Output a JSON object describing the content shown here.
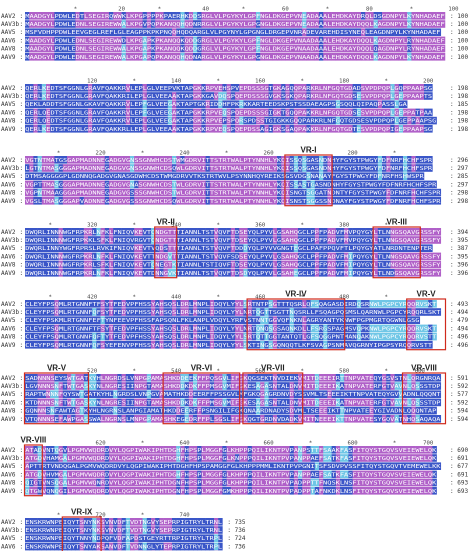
{
  "colors": {
    "conserved": "#3a56c8",
    "similar": "#b060c8",
    "partial": "#6fc6e6",
    "region_box": "#d02a1c",
    "region_line": "#d02a1c"
  },
  "blocks": [
    {
      "ruler": [
        [
          "*",
          12
        ],
        [
          "20",
          23
        ],
        [
          "*",
          32
        ],
        [
          "40",
          43
        ],
        [
          "*",
          52
        ],
        [
          "60",
          62
        ],
        [
          "*",
          72
        ],
        [
          "80",
          82
        ],
        [
          "*",
          92
        ],
        [
          "100",
          102
        ]
      ],
      "rows": [
        {
          "name": "AAV2",
          "end": "100",
          "seq": "MAADGYLPDWLEDTLSEGIRQWWKLKPGPPPPKPAERHKDDSRGLVLPGYKYLGPFNGLDKGEPVNEADAAALEHDKAYDRQLDSGDNPYLKYNHADAEF"
        },
        {
          "name": "AAV3b",
          "end": "100",
          "seq": "MAADGYLPDWLEDNLSEGIREWWALKPGVPQPKANQQHQDNRRGLVLPGYKYLGPGNGLDKGEPVNEADAAALEHDKAYDQQLKAGDNPYLKYNHADAEF"
        },
        {
          "name": "AAV5",
          "end": "100",
          "seq": "MSFVDHPPDWLEEVGEGLREFLGLEAGPPKPKPNQQHQDQARGLVLPGYNYLGPGNGLDRGEPVNRADEVAREHDISYNEQLEAGDNPYLKYNHADAEF"
        },
        {
          "name": "AAV6",
          "end": "100",
          "seq": "MAADGYLPDWLEDNLSEGIREWWDLKPGAPKPKANQQKQDDGRGLVLPGYKYLGPFNGLDKGEPVNAADAAALEHDKAYDQQLKAGDNPYLRYNHADAEF"
        },
        {
          "name": "AAV8",
          "end": "100",
          "seq": "MAADGYLPDWLEDNLSEGIREWWALKPGAPKPKANQQKQDDGRGLVLPGYKYLGPFNGLDKGEPVNAADAAALEHDKAYDQQLQAGDNPYLRYNHADAEF"
        },
        {
          "name": "AAV9",
          "end": "100",
          "seq": "MAADGYLPDWLEDNLSEGIREWWALKPGAPQPKANQQHQDNARGLVLPGYKYLGPGNGLDKGEPVNAADAAALEHDKAYDQQLKAGDNPYLKYNHADAEF"
        }
      ]
    },
    {
      "ruler": [
        [
          "120",
          16
        ],
        [
          "*",
          26
        ],
        [
          "140",
          36
        ],
        [
          "*",
          46
        ],
        [
          "160",
          56
        ],
        [
          "*",
          66
        ],
        [
          "180",
          76
        ],
        [
          "*",
          86
        ],
        [
          "200",
          96
        ]
      ],
      "rows": [
        {
          "name": "AAV2",
          "end": "198",
          "seq": "QERLKEDTSFGGNLGRAVFQAKKRVLEPLGLVEEPVKTAPGKKRPVEHSPVEPDSSSGTGKAGQQPARKRLNFGQTGDADSVPDPQPLGQPPAAPSG"
        },
        {
          "name": "AAV3b",
          "end": "198",
          "seq": "QERLKEDTSFGGNLGRAVFQAKKRILEPLGLVEEAAKTAPGKKGAVDQSPQEPDSSSGVGKSGKQPARKRLNFGQTGDSESVPDPQPLGEPPAAPTS"
        },
        {
          "name": "AAV5",
          "end": "185",
          "seq": "QEKLADDTSFGGNLGKAVFQAKKRVLEPFGLVEEGAKTAPTGKRIDDHFPKRKKARTEEDSKPSTSSDAEAGPSGSQQLQIPAQPASSLGA"
        },
        {
          "name": "AAV6",
          "end": "198",
          "seq": "QERLQEDTSFGGNLGRAVFQAKKRVLEPFGLVEEGAKTAPGKKRPVEQSPQEPDSSSGIGKTGQQPAKKRLNFGQTGDSESVPDPQPLGEPPATPAA"
        },
        {
          "name": "AAV8",
          "end": "198",
          "seq": "QERLQEDTSFGGNLGRAVFQAKKRVLEPLGLVEEGAKTAPGKKRPVEPSPQRSPDSSTGIGKKGQQPARKRLNFGQTGDSESVPDPQPLGEPPAAPSG"
        },
        {
          "name": "AAV9",
          "end": "198",
          "seq": "QERLKEDTSFGGNLGRAVFQAKKRLLEPLGLVEEAAKTAPGKKRPVEQSPQEPDSSAGIGKSGAQPAKKRLNFGQTGDTESVPDPQPIGEPPAAPSG"
        }
      ]
    },
    {
      "ruler": [
        [
          "*",
          8
        ],
        [
          "220",
          18
        ],
        [
          "*",
          28
        ],
        [
          "240",
          38
        ],
        [
          "*",
          48
        ],
        [
          "260",
          58
        ],
        [
          "*",
          68
        ],
        [
          "280",
          78
        ],
        [
          "*",
          88
        ]
      ],
      "rows": [
        {
          "name": "AAV2",
          "end": "296",
          "seq": "VGTNTMATGSGAPMADNNEGADGVGNSSGNWHCDSTWMGDRVITTSTRTWALPTYNNHLYKQISSQSGASNDNHYFGYSTPWGYFDFNRFHCHFSPR"
        },
        {
          "name": "AAV3b",
          "end": "297",
          "seq": "LGTNTMASGGGAPMADNNEGADGVGNSSGNWHCDSQWLGDRVITTSTRTWALPTYNNHLYKQISSQSGASNDNHYFGYSTPWGYFDFNRFHCHFSPR"
        },
        {
          "name": "AAV5",
          "end": "285",
          "seq": "DTMSAGGGGPLGDNNQGADGVGNASGDWHCDSTWMGDRVVTKSTRTWVLPSYNNHQYREIKSGSVDGSNANAYFGYSTPWGYFDFNRFHSHWSPR"
        },
        {
          "name": "AAV6",
          "end": "297",
          "seq": "VGPTTMASGGGAPMADNNEGADGVGNASGNWHCDSTWLGDRVITTSTRTWALPTYNNHLYKQISSASTGASNDNHYFGYSTPWGYFDFNRFHCHFSPR"
        },
        {
          "name": "AAV8",
          "end": "298",
          "seq": "VGPNTMAAGGGAPMADNNEGADGVGSSSGNWHCDSTWLGDRVITTSTRTWALPTYNNHLYKQISNGTSGGATNDNTYFGYSTPWGYFDFNRFHCHFSPR"
        },
        {
          "name": "AAV9",
          "end": "298",
          "seq": "VGSLTMASGGGAPVADNNEGADGVGSSSGNWHCDSQWLGDRVITTSTRTWALPTYNNHLYKQISNSTSGGSSNDNAYFGYSTPWGYFDFNRFHCHFSPR"
        }
      ]
    },
    {
      "ruler": [
        [
          "*",
          6
        ],
        [
          "320",
          16
        ],
        [
          "*",
          26
        ],
        [
          "340",
          36
        ],
        [
          "*",
          46
        ],
        [
          "360",
          56
        ],
        [
          "*",
          66
        ],
        [
          "380",
          76
        ],
        [
          "*",
          86
        ]
      ],
      "rows": [
        {
          "name": "AAV2",
          "end": "394",
          "seq": "DWQRLINNNWGFRPKRLNFKLFNIQVKEVTQNDGTTTIANNLTSTVQVFTDSEYQLPYVLGSAHQGCLPPFPADVFMVPQYGYLTLNNGSQAVGRSSFY"
        },
        {
          "name": "AAV3b",
          "end": "395",
          "seq": "DWQRLINNNWGFRPKKLSFKLFNIQVRGVTQNDGTTTIANNLTSTVQVFTDSEYQLPYVLGSAHQGCLPPFPADVFMVPQYGYLTLNNGSQAVGRSSFY"
        },
        {
          "name": "AAV5",
          "end": "387",
          "seq": "DWQRLINNYWGFRPRSLRVKIFNIQVKEVTVQDSTTTIANNLTSTVQVFTDDDYQLPYVVGNGTEGCLPAFPPQVFTLPQYGYATLNRDNTENPTER"
        },
        {
          "name": "AAV6",
          "end": "395",
          "seq": "DWQRLINNNWGFRPKRLNFKLFNIQVKEVTTNDGVTTIANNLTSTVQVFSDSEYQLPYVLGSAHQGCLPPFPADVFMIPQYGYLTLNNGSQAVGRSSFY"
        },
        {
          "name": "AAV8",
          "end": "396",
          "seq": "DWQRLINNNWGFRPKRLSFKLFNIQVKEVTQNEGTKTIANNLTSTIQVFTDSEYQLPYVLGSAHQGCLPPFPADVFMIPQYGYLTLNNGSQAVGRSSFY"
        },
        {
          "name": "AAV9",
          "end": "396",
          "seq": "DWQRLINNNWGFRPKRLNFKLFNIQVKEVTDNNGVKTIANNLTSTVQVFTDSDYQLPYVLGSAHEGCLPPFPADVFMIPQYGYLTLNDGSQAVGRSSFY"
        }
      ]
    },
    {
      "ruler": [
        [
          "*",
          6
        ],
        [
          "420",
          16
        ],
        [
          "*",
          26
        ],
        [
          "440",
          36
        ],
        [
          "*",
          46
        ],
        [
          "460",
          56
        ],
        [
          "*",
          66
        ],
        [
          "480",
          76
        ],
        [
          "*",
          86
        ]
      ],
      "rows": [
        {
          "name": "AAV2",
          "end": "493",
          "seq": "CLEYFPSQMLRTGNNFTFSYTFEDVPFHSSYAHSQSLDRLMNPLIDQYLYYLSRTNTPSGTTTQSRLQFSQAGASDIRDQSRNWLPGPCYRQQRVSKT"
        },
        {
          "name": "AAV3b",
          "end": "494",
          "seq": "CLEYFPSQMLRTGNNFQFSYTFEDVPFHSSYAHSQSLDRLMNPLIDQYLYYLNRTQGTTSGTTNQSRLLFSQAGPQSMSLQARNWLPGPCYRQQRLSKT"
        },
        {
          "name": "AAV5",
          "end": "479",
          "seq": "CLEYFPSKMLRTGNNFEFTYNFEEVPFHSSFAPSQNLFKLANPLVDQYLYRFVSTNNTGGVQFNKNLAGRYANTYKNWFPGPMGRTQGWNLGSG"
        },
        {
          "name": "AAV6",
          "end": "494",
          "seq": "CLEYFPSQMLRTGNNFTFSYTFEDVPFHSSYAHSQSLDRLMNPLIDQYLYYLNRTQNQSGSAQNKDLLFSRGSPAGMSVQPKNWLPGPCYRQQRVSKT"
        },
        {
          "name": "AAV8",
          "end": "496",
          "seq": "CLEYFPSQMLRTGNNFQFTYTFEDVPFHSSYAHSQSLDRLMNPLIDQYLYYLSRTQTTGGTANTQTLGFSQGGPNTMANQAKNWLPGPCYRQQRVSTT"
        },
        {
          "name": "AAV9",
          "end": "496",
          "seq": "CLEYFPSQMLRTGNNFQFSYEFENVPFHSSYAHSQSLDRLMNPLIDQYLYYLSKTINGSGQNQQTLKFSVAGPSNMAVQGRNYIPGPSYRQQRVSTT"
        }
      ]
    },
    {
      "ruler": [
        [
          "*",
          6
        ],
        [
          "520",
          16
        ],
        [
          "*",
          26
        ],
        [
          "540",
          36
        ],
        [
          "*",
          46
        ],
        [
          "560",
          56
        ],
        [
          "*",
          66
        ],
        [
          "580",
          76
        ],
        [
          "*",
          86
        ],
        [
          "600",
          94
        ]
      ],
      "rows": [
        {
          "name": "AAV2",
          "end": "591",
          "seq": "SADNNNSEYSWTGATKYHLNGRDSLVNPGPAMASHKDDEEKFFPQSGVLIFGKQGSEKTNVDIEKVMITDEEEIRTTNPVATEQYGSVSTNLQRGNRQA"
        },
        {
          "name": "AAV3b",
          "end": "592",
          "seq": "LGVNNNSNFTWTGASKYNLNGRESIINPGTAMASHKDDKDKFFPMSGVMIFGKESAGASNTALDNVMITDEEEIKATNPVATERFGTVAVNLQSSSTDP"
        },
        {
          "name": "AAV5",
          "end": "577",
          "seq": "RAPTWNNNFQYSWTGATKYHLNGRDSLVNPGVAMATHKDDEERFFPSSGVLMFGKQGAGRDNVDYSSVMLTSEEEIKTTNPVATEQYGVVADNLQQQNT"
        },
        {
          "name": "AAV6",
          "end": "592",
          "seq": "KTDNNNSNFTWTGASKYNLNGRESIINPGTAMASHKDDKDKFFPMSGVMIFGKESAGASNTALDNVMITDEEEIKATNPVATERFGTVAVNLQSSSTDP"
        },
        {
          "name": "AAV8",
          "end": "594",
          "seq": "GQNNNSNFAWTAGTKYHLNGRNSLANPGIAMATHKDDEERFFPSNGILIFGKQNAARDNADYSDVMLTSEEEIKTTNPVATEEYGIVADNLQQQNTAP"
        },
        {
          "name": "AAV9",
          "end": "594",
          "seq": "VTQNNNSEFAWPGASSWALNGRNSLMNPGPAMASHKEGEDRFFPLSGSLIFGKQGTGRDNVDADKVMITNEEEIKTTNPVATESYGQVATNHQSAQAQA"
        }
      ]
    },
    {
      "ruler": [
        [
          "620",
          18
        ],
        [
          "*",
          28
        ],
        [
          "640",
          38
        ],
        [
          "*",
          48
        ],
        [
          "660",
          58
        ],
        [
          "*",
          68
        ],
        [
          "680",
          78
        ],
        [
          "*",
          88
        ],
        [
          "700",
          96
        ]
      ],
      "rows": [
        {
          "name": "AAV2",
          "end": "690",
          "seq": "ATADVNTQGVLPGMVWQDRDVYLQGPIWAKIPHTDGHFHPSPLMGGFGLKHPPPQILIKNTPVPANPSTTFSAAKFASFITQYSTGQVSVEIEWELQK"
        },
        {
          "name": "AAV3b",
          "end": "691",
          "seq": "ATGDVHAMGALPGMVWQDRDVYLQGPIWAKIPHTDGHFHPSPLMGGFGLKNPPPQILIKNTPVPANPPAEFSATKFASFITQYSTGQVSVEIEWELQK"
        },
        {
          "name": "AAV5",
          "end": "677",
          "seq": "APTTRTVNDQGALPGMVWQDRDVYLQGPIWAKIPHTDGHFHPSPAMGGFGLKHPPPMMLIKNTPVPGNITSFSDVPVSSFITQYSTGQVTVEMEWELKK"
        },
        {
          "name": "AAV6",
          "end": "691",
          "seq": "ATGDVHVMGALPGMVWQDRDVYLQGPIWAKIPHTDGHFHPSPLMGGFGLKHPPPQILIKNTPVPANPPAEFSATKFASFITQYSTGQVSVEIEWELQK"
        },
        {
          "name": "AAV8",
          "end": "693",
          "seq": "QIGTVNSQGALPGMVWQNRDVYLQGPIWAKIPHTDGNFHPSPLMGGFGLKHPPPQILIKNTPVPADPPTTFNQSKLNSFITQYSTGQVSVEIEWELQK"
        },
        {
          "name": "AAV9",
          "end": "693",
          "seq": "QTGWVQNQGILPGMVWQDRDVYLQGPIWAKIPHTDGNFHPSPLMGGFGMKHPPPQILIKNTPVPADPPTAFNKDKLNSFITQYSTGQVSVEIEWELQK"
        }
      ]
    },
    {
      "ruler": [
        [
          "*",
          8
        ],
        [
          "720",
          18
        ],
        [
          "*",
          28
        ],
        [
          "740",
          38
        ]
      ],
      "rows": [
        {
          "name": "AAV2",
          "end": "735",
          "seq": "ENSKRWNPEIQYTSNYNKSVNVDFTVDTNGVYSEPRPIGTRYLTRNL"
        },
        {
          "name": "AAV3b",
          "end": "736",
          "seq": "ENSKRWNPEIQYTSNYNKSVNVDFTVDTNGVYSEPRPIGTRYLTRNL"
        },
        {
          "name": "AAV5",
          "end": "724",
          "seq": "ENSKRWNPEIQYTNNYNDPQFVDFAPDSTGEYRTTRPIGTRYLTRPL"
        },
        {
          "name": "AAV6",
          "end": "736",
          "seq": "ENSKRWNPEIQYTSNYAKSANVDFTVDNNGLYTEPRPIGTRYLTRPL"
        },
        {
          "name": "AAV8",
          "end": "738",
          "seq": "ENSKRWNPEIQYTSNYYKSTSVDFAVNTEGVYSEPRPIGTRYLTRNL"
        },
        {
          "name": "AAV9",
          "end": "736",
          "seq": "ENSKRWNPEIQYTSNYYKSNNVEFAVNTEGVYSEPRPIGTRYLTRNL"
        }
      ]
    }
  ],
  "regions": [
    {
      "label": "VR-I"
    },
    {
      "label": "VR-II"
    },
    {
      "label": "VR-III"
    },
    {
      "label": "VR-IV"
    },
    {
      "label": "VR-V"
    },
    {
      "label": "VR-V"
    },
    {
      "label": "VR-VI"
    },
    {
      "label": "VR-VII"
    },
    {
      "label": "VR-VIII"
    },
    {
      "label": "VR-VIII"
    },
    {
      "label": "VR-IX"
    }
  ]
}
